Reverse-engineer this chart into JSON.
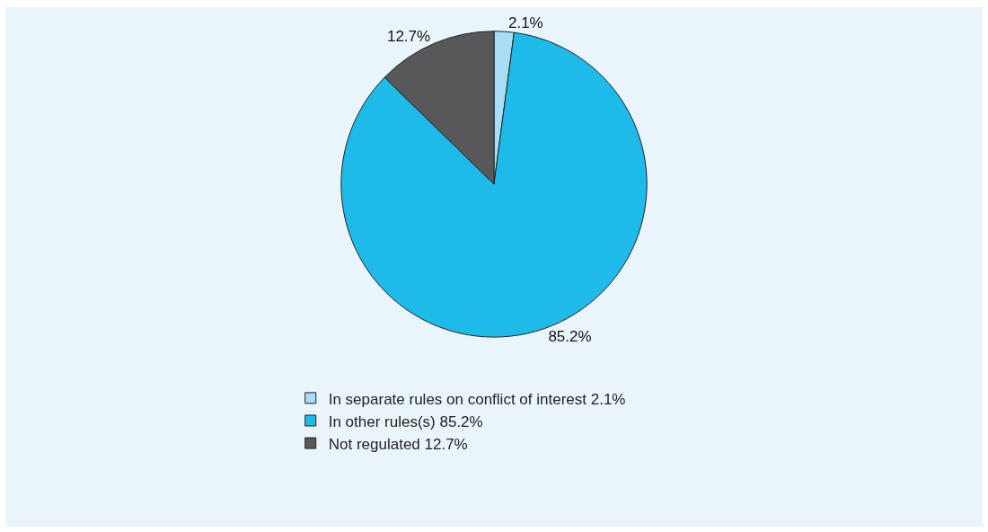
{
  "chart_data": {
    "type": "pie",
    "categories": [
      "In separate rules on conflict of interest 2.1%",
      "In other rules(s) 85.2%",
      "Not regulated 12.7%"
    ],
    "values": [
      2.1,
      85.2,
      12.7
    ],
    "colors": [
      "#a8ddf5",
      "#1ebbe9",
      "#58585a"
    ],
    "value_labels": [
      "2.1%",
      "85.2%",
      "12.7%"
    ],
    "legend": "bottom"
  }
}
